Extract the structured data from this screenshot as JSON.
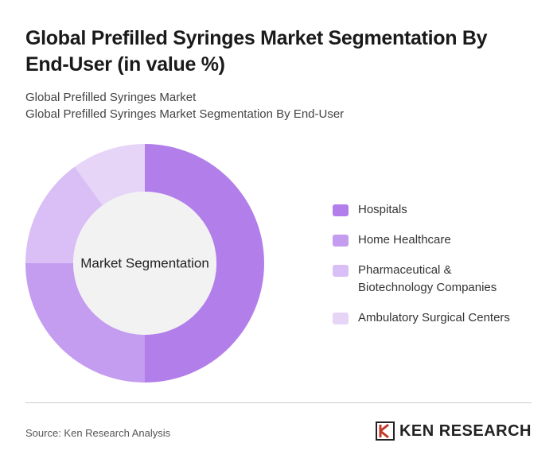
{
  "chart_data": {
    "type": "donut",
    "title": "Global Prefilled Syringes Market Segmentation By End-User (in value %)",
    "subtitle": [
      "Global Prefilled Syringes Market",
      "Global Prefilled Syringes Market Segmentation By End-User"
    ],
    "center_label": "Market Segmentation",
    "categories": [
      "Hospitals",
      "Home Healthcare",
      "Pharmaceutical & Biotechnology Companies",
      "Ambulatory Surgical Centers"
    ],
    "values": [
      50,
      25,
      15,
      10
    ],
    "colors": [
      "#b27fea",
      "#c49cf0",
      "#d9bff5",
      "#e7d5f8"
    ],
    "source": "Source: Ken Research Analysis",
    "logo": "KEN RESEARCH"
  }
}
